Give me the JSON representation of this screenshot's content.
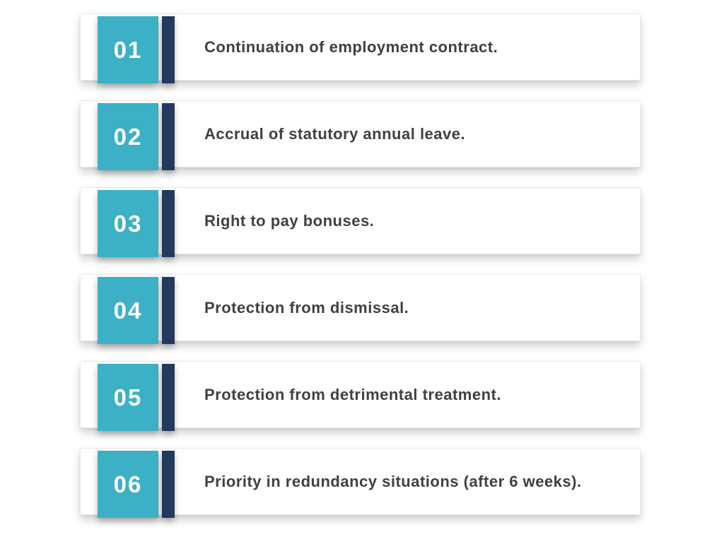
{
  "colors": {
    "number_box": "#3CB1C5",
    "accent_bar": "#24395E",
    "item_text": "#3E4144",
    "number_text": "#FFFFFF",
    "card_background": "#FFFFFF",
    "page_background": "#FFFFFF"
  },
  "list": {
    "items": [
      {
        "number": "01",
        "text": "Continuation of employment contract."
      },
      {
        "number": "02",
        "text": "Accrual of statutory annual leave."
      },
      {
        "number": "03",
        "text": "Right to pay bonuses."
      },
      {
        "number": "04",
        "text": "Protection from dismissal."
      },
      {
        "number": "05",
        "text": "Protection from detrimental treatment."
      },
      {
        "number": "06",
        "text": "Priority in redundancy situations (after 6 weeks)."
      }
    ]
  }
}
